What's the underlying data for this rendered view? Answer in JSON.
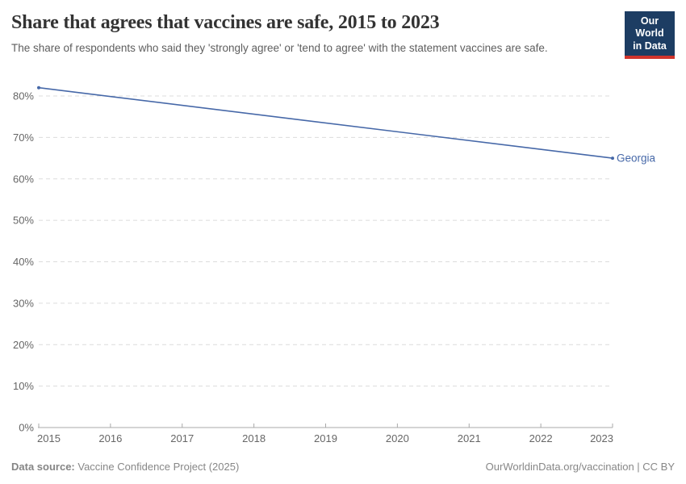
{
  "header": {
    "title": "Share that agrees that vaccines are safe, 2015 to 2023",
    "subtitle": "The share of respondents who said they 'strongly agree' or 'tend to agree' with the statement vaccines are safe."
  },
  "logo": {
    "line1": "Our World",
    "line2": "in Data",
    "bg_color": "#1d3d63",
    "accent_color": "#d0342c"
  },
  "chart_data": {
    "type": "line",
    "title": "Share that agrees that vaccines are safe, 2015 to 2023",
    "xlabel": "",
    "ylabel": "",
    "x": {
      "min": 2015,
      "max": 2023,
      "ticks": [
        2015,
        2016,
        2017,
        2018,
        2019,
        2020,
        2021,
        2022,
        2023
      ]
    },
    "y": {
      "min": 0,
      "max": 80,
      "tick_suffix": "%",
      "ticks": [
        0,
        10,
        20,
        30,
        40,
        50,
        60,
        70,
        80
      ]
    },
    "grid": "horizontal-dashed",
    "legend_position": "end-of-line",
    "axis_color": "#a8a8a8",
    "grid_color": "#dcdcdc",
    "tick_label_color": "#666666",
    "series": [
      {
        "name": "Georgia",
        "color": "#4668a8",
        "points": [
          {
            "x": 2015,
            "y": 82
          },
          {
            "x": 2023,
            "y": 65
          }
        ]
      }
    ]
  },
  "footer": {
    "datasource_label": "Data source:",
    "datasource_value": " Vaccine Confidence Project (2025)",
    "attribution": "OurWorldinData.org/vaccination | CC BY"
  }
}
